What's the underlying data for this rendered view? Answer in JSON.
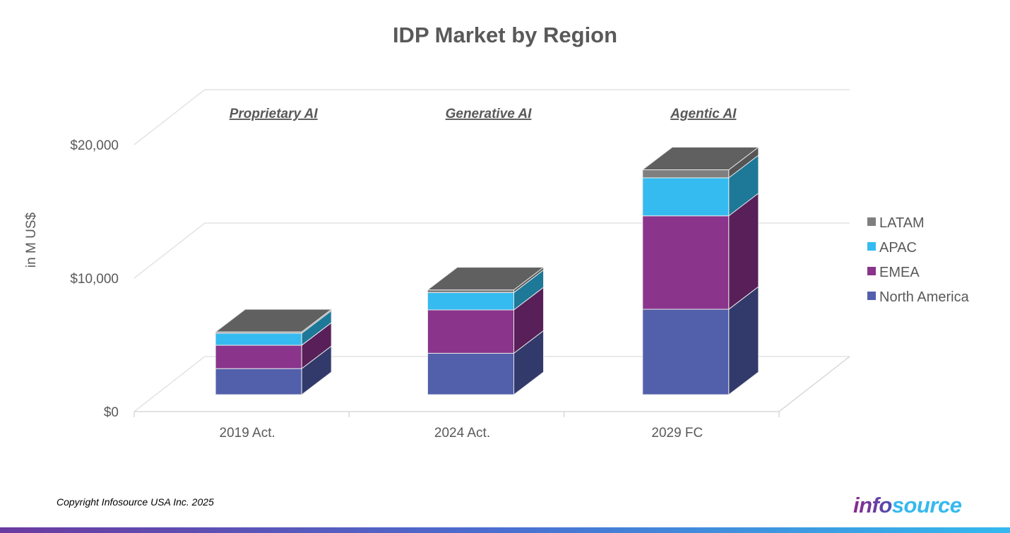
{
  "chart_data": {
    "type": "bar",
    "stacked": true,
    "three_d": true,
    "title": "IDP Market by Region",
    "ylabel": "in M US$",
    "xlabel": "",
    "categories": [
      "2019 Act.",
      "2024 Act.",
      "2029 FC"
    ],
    "annotations": [
      "Proprietary AI",
      "Generative AI",
      "Agentic AI"
    ],
    "ylim": [
      0,
      20000
    ],
    "yticks": [
      {
        "value": 0,
        "label": "$0"
      },
      {
        "value": 10000,
        "label": "$10,000"
      },
      {
        "value": 20000,
        "label": "$20,000"
      }
    ],
    "grid": true,
    "legend_position": "right",
    "series": [
      {
        "name": "North America",
        "color": "#525fab",
        "side": "#323a6b",
        "values": [
          1950,
          3100,
          6400
        ]
      },
      {
        "name": "EMEA",
        "color": "#8a348c",
        "side": "#581f59",
        "values": [
          1750,
          3250,
          7000
        ]
      },
      {
        "name": "APAC",
        "color": "#35bbf0",
        "side": "#1e7898",
        "values": [
          900,
          1300,
          2850
        ]
      },
      {
        "name": "LATAM",
        "color": "#7f7f7f",
        "side": "#555555",
        "values": [
          100,
          200,
          600
        ]
      }
    ]
  },
  "footer": {
    "copyright": "Copyright Infosource USA Inc. 2025",
    "logo": "infosource"
  }
}
